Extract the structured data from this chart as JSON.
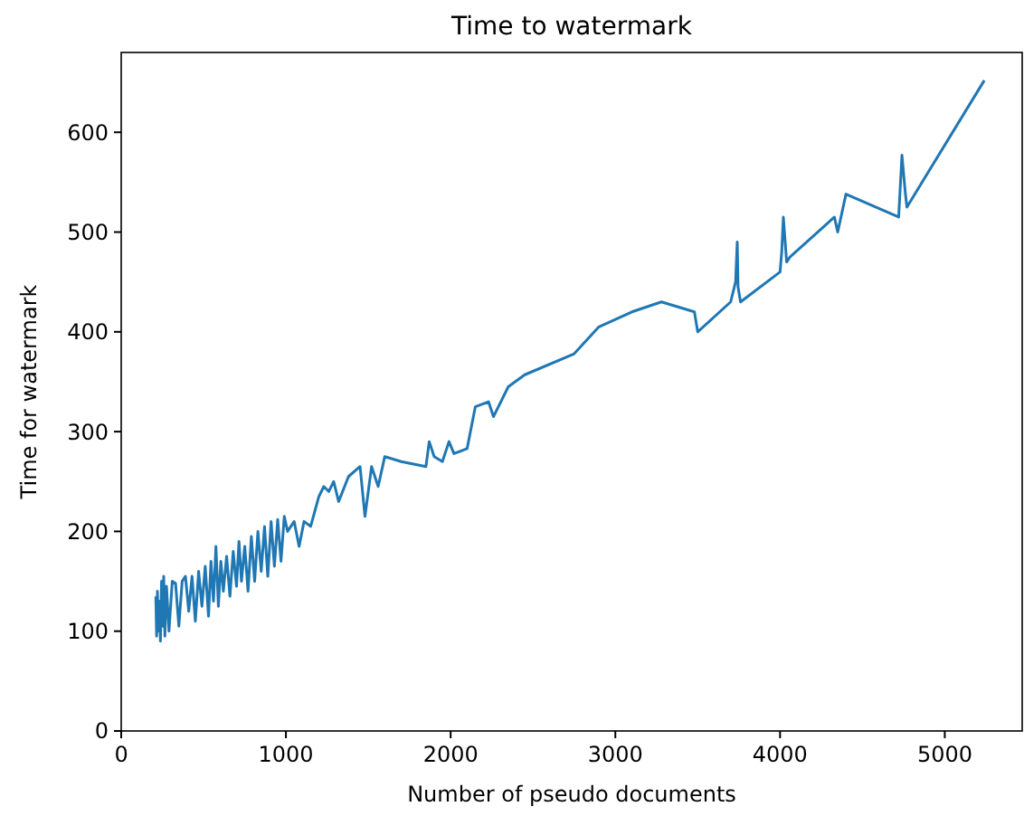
{
  "chart_data": {
    "type": "line",
    "title": "Time to watermark",
    "xlabel": "Number of pseudo documents",
    "ylabel": "Time for watermark",
    "xlim": [
      0,
      5470
    ],
    "ylim": [
      0,
      680
    ],
    "xticks": [
      0,
      1000,
      2000,
      3000,
      4000,
      5000
    ],
    "yticks": [
      0,
      100,
      200,
      300,
      400,
      500,
      600
    ],
    "series": [
      {
        "color": "#1f77b4",
        "x": [
          210,
          215,
          220,
          225,
          232,
          238,
          245,
          250,
          258,
          265,
          275,
          290,
          310,
          330,
          350,
          370,
          390,
          410,
          430,
          450,
          470,
          490,
          510,
          530,
          545,
          560,
          575,
          590,
          605,
          620,
          640,
          660,
          680,
          700,
          715,
          730,
          750,
          770,
          790,
          810,
          830,
          850,
          870,
          890,
          910,
          930,
          950,
          970,
          990,
          1010,
          1050,
          1080,
          1110,
          1150,
          1200,
          1230,
          1260,
          1290,
          1320,
          1380,
          1450,
          1480,
          1520,
          1560,
          1600,
          1700,
          1850,
          1870,
          1900,
          1950,
          1990,
          2020,
          2100,
          2150,
          2230,
          2260,
          2350,
          2450,
          2750,
          2900,
          3100,
          3280,
          3480,
          3500,
          3700,
          3730,
          3740,
          3745,
          3760,
          4000,
          4010,
          4020,
          4040,
          4060,
          4330,
          4350,
          4400,
          4720,
          4740,
          4760,
          4770,
          5240
        ],
        "values": [
          135,
          95,
          140,
          100,
          130,
          90,
          150,
          105,
          155,
          95,
          145,
          100,
          150,
          148,
          105,
          150,
          155,
          120,
          155,
          110,
          160,
          125,
          165,
          115,
          170,
          130,
          185,
          125,
          170,
          140,
          175,
          135,
          180,
          145,
          190,
          150,
          185,
          140,
          195,
          150,
          200,
          160,
          205,
          155,
          210,
          165,
          212,
          170,
          215,
          200,
          210,
          185,
          210,
          205,
          235,
          245,
          240,
          250,
          230,
          255,
          265,
          215,
          265,
          245,
          275,
          270,
          265,
          290,
          275,
          270,
          290,
          278,
          283,
          325,
          330,
          315,
          345,
          357,
          378,
          405,
          420,
          430,
          420,
          400,
          430,
          450,
          490,
          445,
          430,
          460,
          480,
          515,
          470,
          475,
          515,
          500,
          538,
          515,
          577,
          540,
          525,
          652
        ]
      }
    ]
  }
}
